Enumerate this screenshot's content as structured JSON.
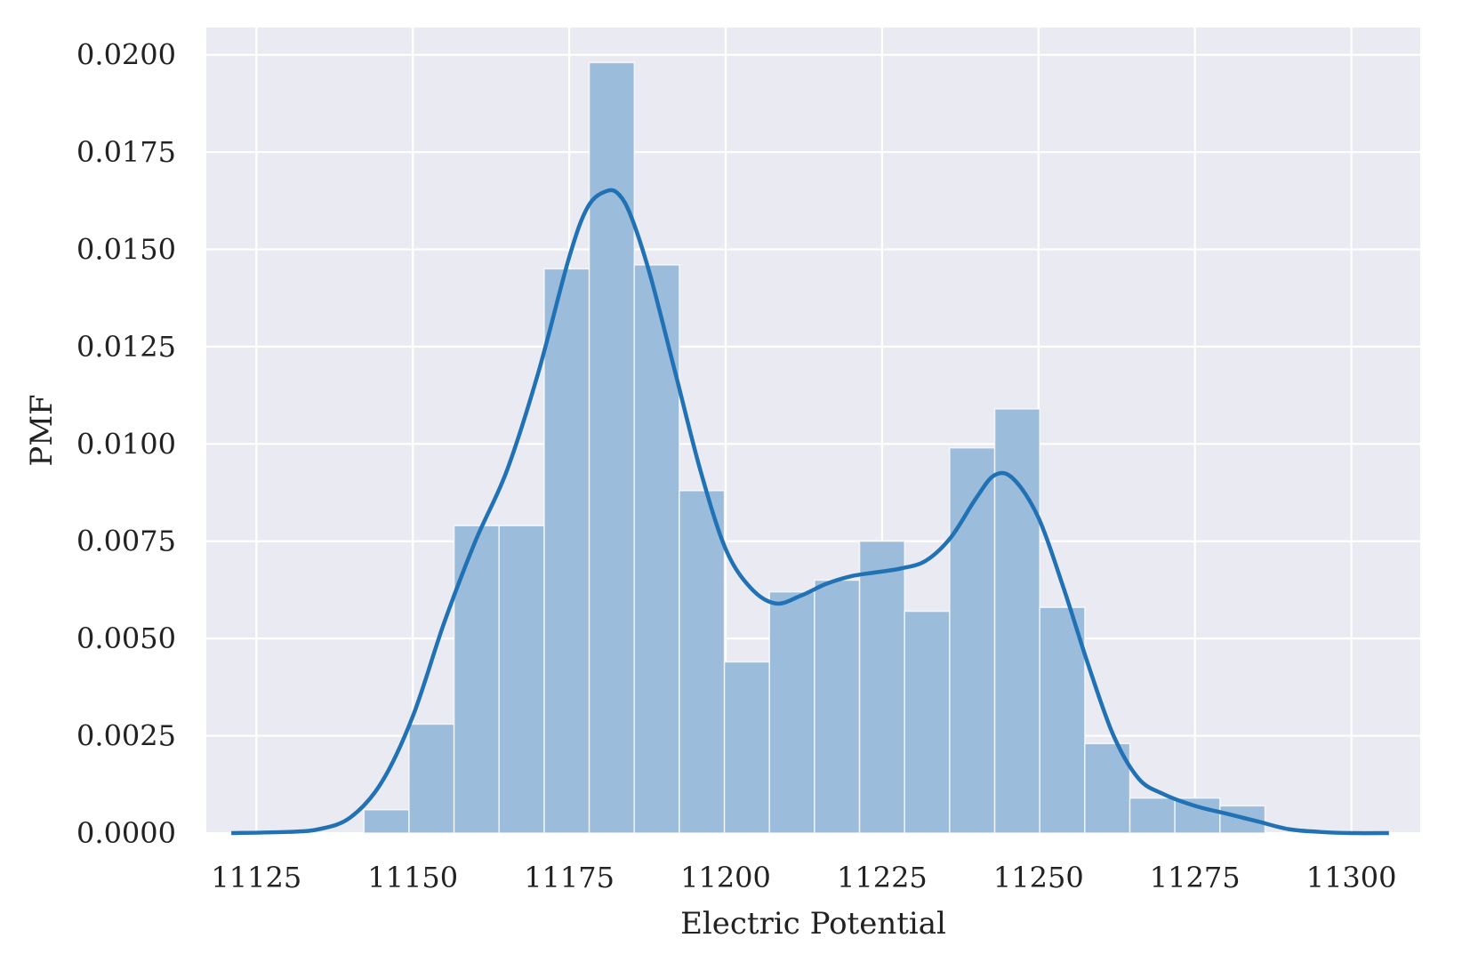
{
  "chart_data": {
    "type": "bar",
    "subtype": "histogram-with-kde",
    "title": "",
    "xlabel": "Electric Potential",
    "ylabel": "PMF",
    "xlim": [
      11117,
      11311
    ],
    "ylim": [
      0,
      0.0207
    ],
    "grid": true,
    "x_ticks": [
      11125,
      11150,
      11175,
      11200,
      11225,
      11250,
      11275,
      11300
    ],
    "y_ticks": [
      0,
      0.0025,
      0.005,
      0.0075,
      0.01,
      0.0125,
      0.015,
      0.0175,
      0.02
    ],
    "x_tick_labels": [
      "11125",
      "11150",
      "11175",
      "11200",
      "11225",
      "11250",
      "11275",
      "11300"
    ],
    "y_tick_labels": [
      "0.0000",
      "0.0025",
      "0.0050",
      "0.0075",
      "0.0100",
      "0.0125",
      "0.0150",
      "0.0175",
      "0.0200"
    ],
    "histogram": {
      "bin_edges": [
        11142.2,
        11149.4,
        11156.6,
        11163.8,
        11171.0,
        11178.2,
        11185.4,
        11192.6,
        11199.8,
        11207.0,
        11214.2,
        11221.4,
        11228.6,
        11235.8,
        11243.0,
        11250.2,
        11257.4,
        11264.6,
        11271.8,
        11279.0,
        11286.2
      ],
      "values": [
        0.0006,
        0.0028,
        0.0079,
        0.0079,
        0.0145,
        0.0198,
        0.0146,
        0.0088,
        0.0044,
        0.0062,
        0.0065,
        0.0075,
        0.0057,
        0.0099,
        0.0109,
        0.0058,
        0.0023,
        0.0009,
        0.0009,
        0.0007
      ],
      "color": "#9bbcda"
    },
    "kde": {
      "x": [
        11121,
        11130,
        11135,
        11140,
        11145,
        11150,
        11155,
        11160,
        11165,
        11170,
        11175,
        11178,
        11181,
        11183,
        11185,
        11188,
        11192,
        11196,
        11200,
        11204,
        11208,
        11212,
        11216,
        11220,
        11224,
        11228,
        11232,
        11236,
        11240,
        11243,
        11246,
        11250,
        11254,
        11258,
        11262,
        11266,
        11270,
        11275,
        11280,
        11285,
        11290,
        11295,
        11300,
        11306
      ],
      "y": [
        0.0,
        3e-05,
        0.0001,
        0.0004,
        0.0013,
        0.003,
        0.0054,
        0.0075,
        0.0093,
        0.0118,
        0.0148,
        0.0161,
        0.0165,
        0.0164,
        0.0158,
        0.0143,
        0.0118,
        0.0093,
        0.0073,
        0.0063,
        0.0059,
        0.0061,
        0.0064,
        0.0066,
        0.0067,
        0.0068,
        0.007,
        0.0076,
        0.0086,
        0.0092,
        0.0091,
        0.0081,
        0.0063,
        0.0043,
        0.0025,
        0.0014,
        0.001,
        0.0007,
        0.0005,
        0.0003,
        0.0001,
        3e-05,
        0.0,
        0.0
      ],
      "color": "#2171b5"
    }
  }
}
